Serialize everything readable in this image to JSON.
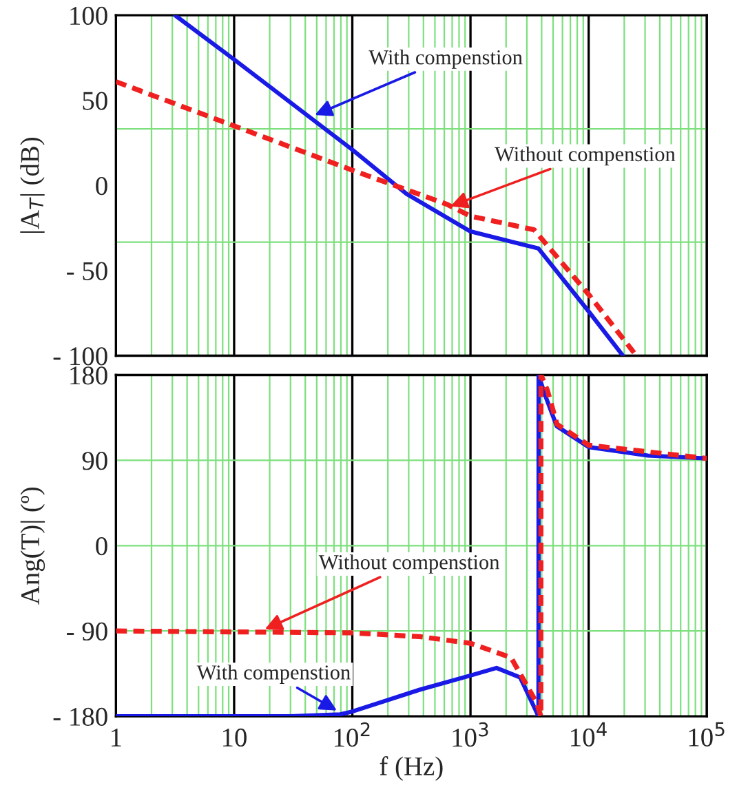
{
  "chart_data": [
    {
      "type": "line",
      "ylabel": "|A$_{T}$| (dB)",
      "log": "x",
      "xlim": [
        1,
        100000
      ],
      "ylim": [
        -100,
        100
      ],
      "xticks": [
        1,
        {
          "value": 2,
          "label": null
        },
        {
          "value": 3,
          "label": null
        },
        {
          "value": 4,
          "label": null
        },
        {
          "value": 5,
          "label": null
        },
        {
          "value": 6,
          "label": null
        },
        {
          "value": 7,
          "label": null
        },
        {
          "value": 8,
          "label": null
        },
        {
          "value": 9,
          "label": null
        },
        10,
        {
          "value": 20,
          "label": null
        },
        {
          "value": 30,
          "label": null
        },
        {
          "value": 40,
          "label": null
        },
        {
          "value": 50,
          "label": null
        },
        {
          "value": 60,
          "label": null
        },
        {
          "value": 70,
          "label": null
        },
        {
          "value": 80,
          "label": null
        },
        {
          "value": 90,
          "label": null
        },
        100,
        {
          "value": 200,
          "label": null
        },
        {
          "value": 300,
          "label": null
        },
        {
          "value": 400,
          "label": null
        },
        {
          "value": 500,
          "label": null
        },
        {
          "value": 600,
          "label": null
        },
        {
          "value": 700,
          "label": null
        },
        {
          "value": 800,
          "label": null
        },
        {
          "value": 900,
          "label": null
        },
        1000,
        {
          "value": 2000,
          "label": null
        },
        {
          "value": 3000,
          "label": null
        },
        {
          "value": 4000,
          "label": null
        },
        {
          "value": 5000,
          "label": null
        },
        {
          "value": 6000,
          "label": null
        },
        {
          "value": 7000,
          "label": null
        },
        {
          "value": 8000,
          "label": null
        },
        {
          "value": 9000,
          "label": null
        },
        10000,
        {
          "value": 20000,
          "label": null
        },
        {
          "value": 30000,
          "label": null
        },
        {
          "value": 40000,
          "label": null
        },
        {
          "value": 50000,
          "label": null
        },
        {
          "value": 60000,
          "label": null
        },
        {
          "value": 70000,
          "label": null
        },
        {
          "value": 80000,
          "label": null
        },
        {
          "value": 90000,
          "label": null
        },
        100000
      ],
      "yticks": [
        100,
        50,
        {
          "value": 33.3,
          "label": null
        },
        0,
        {
          "value": -33.3,
          "label": null
        },
        {
          "value": -50,
          "label": "- 50"
        },
        {
          "value": -100,
          "label": "- 100"
        }
      ],
      "tick_labels": "y",
      "grid": true,
      "legend": false,
      "series": [
        {
          "color": "#1a1ae6",
          "line_style": "solid",
          "x": [
            3.16,
            10,
            100,
            288,
            1000,
            3760,
            10000,
            19500
          ],
          "values": [
            100,
            74,
            21,
            -5,
            -27,
            -37,
            -74,
            -100
          ]
        },
        {
          "color": "#f02020",
          "line_style": "dashed",
          "x": [
            1,
            10,
            100,
            630,
            1000,
            3450,
            10000,
            24700
          ],
          "values": [
            61,
            35,
            9,
            -11,
            -18,
            -26,
            -64,
            -99
          ]
        }
      ],
      "annotations": [
        {
          "text": "With compenstion",
          "x": 45,
          "y": 40.5
        },
        {
          "text": "Without compenstion",
          "x": 630,
          "y": -13
        }
      ]
    },
    {
      "type": "line",
      "xlabel": "f (Hz)",
      "ylabel": "Ang(T)| (º)",
      "log": "x",
      "xlim": [
        1,
        100000
      ],
      "ylim": [
        -180,
        180
      ],
      "xticks": [
        1,
        {
          "value": 2,
          "label": null
        },
        {
          "value": 3,
          "label": null
        },
        {
          "value": 4,
          "label": null
        },
        {
          "value": 5,
          "label": null
        },
        {
          "value": 6,
          "label": null
        },
        {
          "value": 7,
          "label": null
        },
        {
          "value": 8,
          "label": null
        },
        {
          "value": 9,
          "label": null
        },
        10,
        {
          "value": 20,
          "label": null
        },
        {
          "value": 30,
          "label": null
        },
        {
          "value": 40,
          "label": null
        },
        {
          "value": 50,
          "label": null
        },
        {
          "value": 60,
          "label": null
        },
        {
          "value": 70,
          "label": null
        },
        {
          "value": 80,
          "label": null
        },
        {
          "value": 90,
          "label": null
        },
        {
          "value": 100,
          "label": "10$^{2}$"
        },
        {
          "value": 200,
          "label": null
        },
        {
          "value": 300,
          "label": null
        },
        {
          "value": 400,
          "label": null
        },
        {
          "value": 500,
          "label": null
        },
        {
          "value": 600,
          "label": null
        },
        {
          "value": 700,
          "label": null
        },
        {
          "value": 800,
          "label": null
        },
        {
          "value": 900,
          "label": null
        },
        {
          "value": 1000,
          "label": "10$^{3}$"
        },
        {
          "value": 2000,
          "label": null
        },
        {
          "value": 3000,
          "label": null
        },
        {
          "value": 4000,
          "label": null
        },
        {
          "value": 5000,
          "label": null
        },
        {
          "value": 6000,
          "label": null
        },
        {
          "value": 7000,
          "label": null
        },
        {
          "value": 8000,
          "label": null
        },
        {
          "value": 9000,
          "label": null
        },
        {
          "value": 10000,
          "label": "10$^{4}$"
        },
        {
          "value": 20000,
          "label": null
        },
        {
          "value": 30000,
          "label": null
        },
        {
          "value": 40000,
          "label": null
        },
        {
          "value": 50000,
          "label": null
        },
        {
          "value": 60000,
          "label": null
        },
        {
          "value": 70000,
          "label": null
        },
        {
          "value": 80000,
          "label": null
        },
        {
          "value": 90000,
          "label": null
        },
        {
          "value": 100000,
          "label": "10$^{5}$"
        }
      ],
      "yticks": [
        180,
        90,
        0,
        {
          "value": -90,
          "label": "- 90"
        },
        {
          "value": -180,
          "label": "- 180"
        }
      ],
      "grid": true,
      "legend": false,
      "series": [
        {
          "color": "#1a1ae6",
          "line_style": "solid",
          "x": [
            1,
            30,
            79,
            100,
            372,
            1000,
            1660,
            2630,
            3760,
            3770,
            4270,
            5370,
            10000,
            31600,
            100000
          ],
          "values": [
            -180,
            -180,
            -178,
            -175,
            -152,
            -137,
            -129,
            -139,
            -180,
            180,
            159,
            126,
            104,
            95,
            92
          ]
        },
        {
          "color": "#f02020",
          "line_style": "dashed",
          "x": [
            1,
            100,
            372,
            1000,
            2200,
            3600,
            3940,
            3950,
            4470,
            5400,
            10000,
            100000
          ],
          "values": [
            -90,
            -92,
            -96,
            -103,
            -118,
            -165,
            -180,
            180,
            164,
            128,
            106,
            92
          ]
        }
      ],
      "annotations": [
        {
          "text": "Without compenstion",
          "x": 17,
          "y": -90
        },
        {
          "text": "With compenstion",
          "x": 79,
          "y": -176
        }
      ]
    }
  ]
}
